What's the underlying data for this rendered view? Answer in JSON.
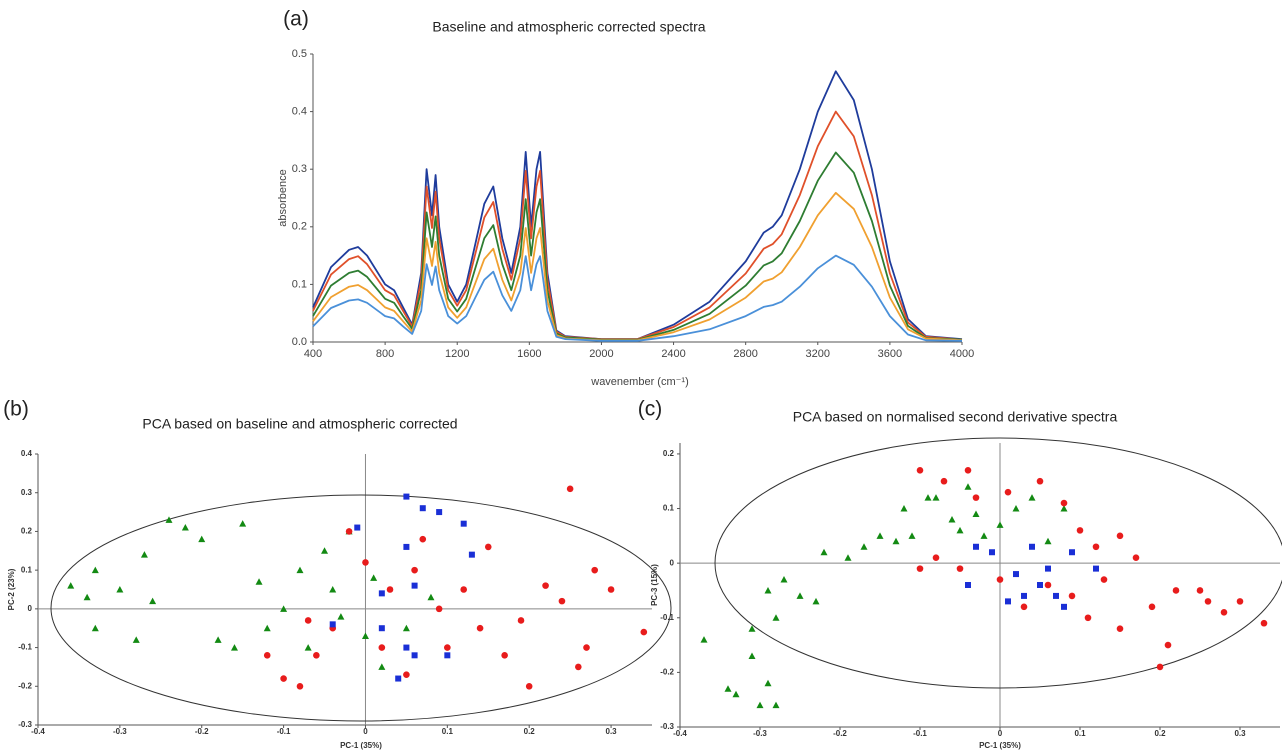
{
  "chart_data": [
    {
      "type": "line",
      "panel_label": "(a)",
      "title": "Baseline and atmospheric corrected spectra",
      "xlabel": "wavenember (cm⁻¹)",
      "ylabel": "absorbence",
      "xlim": [
        400,
        4000
      ],
      "xticks": [
        400,
        800,
        1200,
        1600,
        2000,
        2400,
        2800,
        3200,
        3600,
        4000
      ],
      "ylim": [
        0,
        0.5
      ],
      "yticks": [
        {
          "value": 0,
          "label": "0.0"
        },
        0.1,
        0.2,
        0.3,
        0.4,
        0.5
      ],
      "x": [
        400,
        500,
        600,
        650,
        700,
        800,
        850,
        900,
        950,
        1000,
        1030,
        1060,
        1080,
        1100,
        1150,
        1200,
        1250,
        1300,
        1350,
        1400,
        1450,
        1500,
        1550,
        1580,
        1610,
        1640,
        1660,
        1700,
        1750,
        1800,
        2000,
        2200,
        2400,
        2600,
        2800,
        2900,
        2950,
        3000,
        3100,
        3200,
        3300,
        3400,
        3500,
        3600,
        3700,
        3800,
        4000
      ],
      "series": [
        {
          "color": "#1f3c9c",
          "values": [
            0.06,
            0.13,
            0.16,
            0.165,
            0.15,
            0.1,
            0.09,
            0.06,
            0.03,
            0.12,
            0.3,
            0.22,
            0.29,
            0.2,
            0.1,
            0.07,
            0.1,
            0.17,
            0.24,
            0.27,
            0.18,
            0.12,
            0.2,
            0.33,
            0.2,
            0.3,
            0.33,
            0.12,
            0.02,
            0.01,
            0.005,
            0.005,
            0.03,
            0.07,
            0.14,
            0.19,
            0.2,
            0.22,
            0.3,
            0.4,
            0.47,
            0.42,
            0.3,
            0.14,
            0.04,
            0.01,
            0.005
          ]
        },
        {
          "color": "#e0502a",
          "values": [
            0.054,
            0.117,
            0.144,
            0.149,
            0.135,
            0.09,
            0.081,
            0.054,
            0.027,
            0.108,
            0.27,
            0.198,
            0.261,
            0.18,
            0.09,
            0.063,
            0.09,
            0.153,
            0.216,
            0.243,
            0.162,
            0.108,
            0.18,
            0.297,
            0.18,
            0.27,
            0.297,
            0.108,
            0.018,
            0.009,
            0.005,
            0.005,
            0.026,
            0.06,
            0.119,
            0.162,
            0.17,
            0.187,
            0.255,
            0.34,
            0.4,
            0.357,
            0.255,
            0.119,
            0.034,
            0.009,
            0.004
          ]
        },
        {
          "color": "#2e7d32",
          "values": [
            0.045,
            0.098,
            0.12,
            0.124,
            0.113,
            0.075,
            0.068,
            0.045,
            0.023,
            0.09,
            0.225,
            0.165,
            0.218,
            0.15,
            0.075,
            0.053,
            0.075,
            0.128,
            0.18,
            0.203,
            0.135,
            0.09,
            0.15,
            0.248,
            0.15,
            0.225,
            0.248,
            0.09,
            0.015,
            0.008,
            0.004,
            0.004,
            0.021,
            0.049,
            0.098,
            0.133,
            0.14,
            0.154,
            0.21,
            0.28,
            0.329,
            0.294,
            0.21,
            0.098,
            0.028,
            0.007,
            0.004
          ]
        },
        {
          "color": "#f0a030",
          "values": [
            0.036,
            0.078,
            0.096,
            0.099,
            0.09,
            0.06,
            0.054,
            0.036,
            0.018,
            0.072,
            0.18,
            0.132,
            0.174,
            0.12,
            0.06,
            0.042,
            0.06,
            0.102,
            0.144,
            0.162,
            0.108,
            0.072,
            0.12,
            0.198,
            0.12,
            0.18,
            0.198,
            0.072,
            0.012,
            0.006,
            0.003,
            0.003,
            0.017,
            0.039,
            0.077,
            0.105,
            0.11,
            0.121,
            0.165,
            0.22,
            0.259,
            0.231,
            0.165,
            0.077,
            0.022,
            0.006,
            0.003
          ]
        },
        {
          "color": "#4a90d9",
          "values": [
            0.027,
            0.059,
            0.072,
            0.074,
            0.068,
            0.045,
            0.041,
            0.027,
            0.014,
            0.054,
            0.135,
            0.099,
            0.131,
            0.09,
            0.045,
            0.032,
            0.045,
            0.077,
            0.108,
            0.122,
            0.081,
            0.054,
            0.09,
            0.149,
            0.09,
            0.135,
            0.149,
            0.054,
            0.009,
            0.005,
            0.002,
            0.002,
            0.01,
            0.022,
            0.045,
            0.061,
            0.064,
            0.07,
            0.096,
            0.128,
            0.15,
            0.134,
            0.096,
            0.045,
            0.013,
            0.003,
            0.002
          ]
        }
      ]
    },
    {
      "type": "scatter",
      "panel_label": "(b)",
      "title": "PCA based on baseline and atmospheric corrected",
      "xlabel": "PC-1 (35%)",
      "ylabel": "PC-2 (23%)",
      "xlim": [
        -0.4,
        0.35
      ],
      "xticks": [
        -0.4,
        -0.3,
        -0.2,
        -0.1,
        0,
        0.1,
        0.2,
        0.3
      ],
      "ylim": [
        -0.3,
        0.4
      ],
      "yticks": [
        0.4,
        0.3,
        0.2,
        0.1,
        0,
        -0.1,
        -0.2,
        -0.3
      ],
      "series": [
        {
          "color": "#138a13",
          "marker": "triangle",
          "x": [
            -0.36,
            -0.33,
            -0.34,
            -0.33,
            -0.3,
            -0.28,
            -0.26,
            -0.24,
            -0.22,
            -0.2,
            -0.18,
            -0.15,
            -0.13,
            -0.12,
            -0.1,
            -0.08,
            -0.07,
            -0.05,
            -0.04,
            -0.03,
            -0.02,
            0,
            0.01,
            0.02,
            0.05,
            0.08,
            -0.27,
            -0.16
          ],
          "y": [
            0.06,
            0.1,
            0.03,
            -0.05,
            0.05,
            -0.08,
            0.02,
            0.23,
            0.21,
            0.18,
            -0.08,
            0.22,
            0.07,
            -0.05,
            0,
            0.1,
            -0.1,
            0.15,
            0.05,
            -0.02,
            0.2,
            -0.07,
            0.08,
            -0.15,
            -0.05,
            0.03,
            0.14,
            -0.1
          ]
        },
        {
          "color": "#e81c1c",
          "marker": "circle",
          "x": [
            -0.12,
            -0.1,
            -0.08,
            -0.06,
            -0.04,
            -0.02,
            0,
            0.02,
            0.03,
            0.05,
            0.07,
            0.09,
            0.1,
            0.12,
            0.14,
            0.15,
            0.17,
            0.19,
            0.2,
            0.22,
            0.24,
            0.25,
            0.27,
            0.28,
            0.3,
            0.34,
            0.26,
            -0.07,
            0.06
          ],
          "y": [
            -0.12,
            -0.18,
            -0.2,
            -0.12,
            -0.05,
            0.2,
            0.12,
            -0.1,
            0.05,
            -0.17,
            0.18,
            0,
            -0.1,
            0.05,
            -0.05,
            0.16,
            -0.12,
            -0.03,
            -0.2,
            0.06,
            0.02,
            0.31,
            -0.1,
            0.1,
            0.05,
            -0.06,
            -0.15,
            -0.03,
            0.1
          ]
        },
        {
          "color": "#1a2fd6",
          "marker": "square",
          "x": [
            0.05,
            0.07,
            0.09,
            0.12,
            0.05,
            0.13,
            0.06,
            0.02,
            -0.04,
            0.02,
            0.05,
            0.04,
            0.06,
            0.1,
            -0.01
          ],
          "y": [
            0.29,
            0.26,
            0.25,
            0.22,
            0.16,
            0.14,
            0.06,
            0.04,
            -0.04,
            -0.05,
            -0.1,
            -0.18,
            -0.12,
            -0.12,
            0.21
          ]
        }
      ]
    },
    {
      "type": "scatter",
      "panel_label": "(c)",
      "title": "PCA based on normalised second derivative spectra",
      "xlabel": "PC-1 (35%)",
      "ylabel": "PC-3 (15%)",
      "xlim": [
        -0.4,
        0.35
      ],
      "xticks": [
        -0.4,
        -0.3,
        -0.2,
        -0.1,
        0,
        0.1,
        0.2,
        0.3
      ],
      "ylim": [
        -0.3,
        0.22
      ],
      "yticks": [
        0.2,
        0.1,
        0,
        -0.1,
        -0.2,
        -0.3
      ],
      "series": [
        {
          "color": "#138a13",
          "marker": "triangle",
          "x": [
            -0.37,
            -0.34,
            -0.33,
            -0.31,
            -0.3,
            -0.29,
            -0.28,
            -0.31,
            -0.28,
            -0.27,
            -0.25,
            -0.22,
            -0.19,
            -0.17,
            -0.15,
            -0.13,
            -0.11,
            -0.12,
            -0.08,
            -0.06,
            -0.05,
            -0.03,
            -0.02,
            0,
            0.02,
            0.04,
            0.06,
            0.08,
            -0.09,
            -0.04,
            -0.23,
            -0.29
          ],
          "y": [
            -0.14,
            -0.23,
            -0.24,
            -0.17,
            -0.26,
            -0.22,
            -0.26,
            -0.12,
            -0.1,
            -0.03,
            -0.06,
            0.02,
            0.01,
            0.03,
            0.05,
            0.04,
            0.05,
            0.1,
            0.12,
            0.08,
            0.06,
            0.09,
            0.05,
            0.07,
            0.1,
            0.12,
            0.04,
            0.1,
            0.12,
            0.14,
            -0.07,
            -0.05
          ]
        },
        {
          "color": "#e81c1c",
          "marker": "circle",
          "x": [
            -0.1,
            -0.07,
            -0.04,
            -0.03,
            0.01,
            0.05,
            0.08,
            -0.1,
            -0.08,
            -0.05,
            0,
            0.03,
            0.06,
            0.09,
            0.11,
            0.13,
            0.15,
            0.17,
            0.19,
            0.21,
            0.22,
            0.26,
            0.28,
            0.3,
            0.33,
            0.25,
            0.2,
            0.12,
            0.15,
            0.1
          ],
          "y": [
            0.17,
            0.15,
            0.17,
            0.12,
            0.13,
            0.15,
            0.11,
            -0.01,
            0.01,
            -0.01,
            -0.03,
            -0.08,
            -0.04,
            -0.06,
            -0.1,
            -0.03,
            -0.12,
            0.01,
            -0.08,
            -0.15,
            -0.05,
            -0.07,
            -0.09,
            -0.07,
            -0.11,
            -0.05,
            -0.19,
            0.03,
            0.05,
            0.06
          ]
        },
        {
          "color": "#1a2fd6",
          "marker": "square",
          "x": [
            -0.03,
            -0.04,
            0.02,
            0.03,
            0.05,
            0.06,
            0.07,
            0.09,
            0.04,
            0.12,
            0.08,
            0.01,
            -0.01
          ],
          "y": [
            0.03,
            -0.04,
            -0.02,
            -0.06,
            -0.04,
            -0.01,
            -0.06,
            0.02,
            0.03,
            -0.01,
            -0.08,
            -0.07,
            0.02
          ]
        }
      ]
    }
  ]
}
